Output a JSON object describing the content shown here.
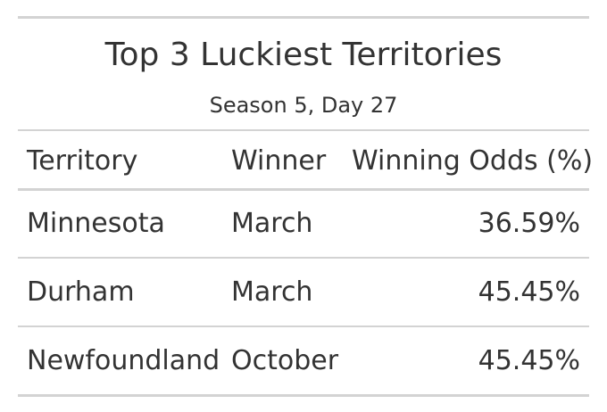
{
  "table": {
    "title": "Top 3 Luckiest Territories",
    "subtitle": "Season 5, Day 27",
    "columns": {
      "territory": "Territory",
      "winner": "Winner",
      "odds": "Winning Odds (%)"
    },
    "rows": [
      {
        "territory": "Minnesota",
        "winner": "March",
        "odds": "36.59%"
      },
      {
        "territory": "Durham",
        "winner": "March",
        "odds": "45.45%"
      },
      {
        "territory": "Newfoundland",
        "winner": "October",
        "odds": "45.45%"
      }
    ],
    "rule_color": "#d3d3d3",
    "text_color": "#333333"
  }
}
